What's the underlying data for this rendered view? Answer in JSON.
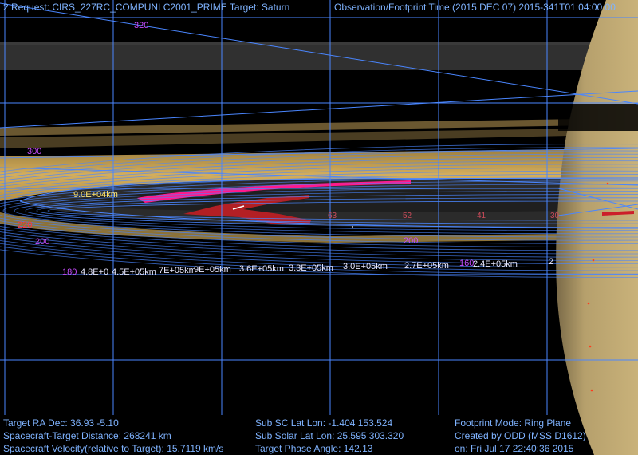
{
  "header": {
    "request": "2  Request: CIRS_227RC_COMPUNLC2001_PRIME Target: Saturn",
    "observation_time": "Observation/Footprint Time:(2015 DEC 07) 2015-341T01:04:00.00"
  },
  "footer": {
    "target_ra_dec": "Target RA Dec: 36.93  -5.10",
    "sc_target_distance": "Spacecraft-Target Distance:  268241 km",
    "sc_velocity": "Spacecraft Velocity(relative to Target): 15.7119 km/s",
    "sub_sc_lat_lon": "Sub SC Lat Lon: -1.404  153.524",
    "sub_solar_lat_lon": "Sub Solar Lat Lon: 25.595  303.320",
    "phase_angle": "Target Phase Angle: 142.13",
    "footprint_mode": "Footprint Mode: Ring Plane",
    "created_by": "Created by ODD (MSS D1612)",
    "created_on": "on: Fri Jul 17 22:40:36 2015"
  },
  "longitude_labels": [
    "320",
    "300",
    "220",
    "200",
    "200",
    "180",
    "160"
  ],
  "ring_labels": [
    "9.0E+04km",
    "4.8E+0",
    "4.5E+05km",
    "7E+05km",
    "9E+05km",
    "3.6E+05km",
    "3.3E+05km",
    "3.0E+05km",
    "2.7E+05km",
    "2.4E+05km",
    "2"
  ],
  "angle_ticks": [
    "63",
    "52",
    "41",
    "30"
  ],
  "colors": {
    "hud_text": "#7fb3ff",
    "grid": "#4a86ff",
    "ring_gold": "#c8a456",
    "saturn": "#b49a66",
    "footprint_red": "#b31f24",
    "footprint_magenta": "#ff1a8c"
  }
}
